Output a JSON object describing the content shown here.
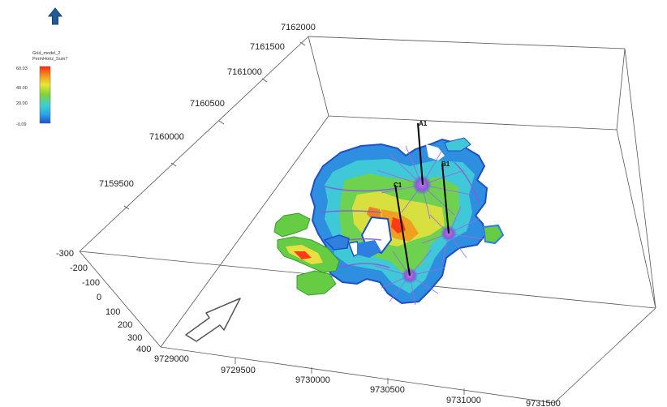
{
  "legend": {
    "title_line1": "Grid_model_2",
    "title_line2": "PermHoriz_Sum7",
    "ticks": [
      "60.03",
      "40.00",
      "20.00",
      "-0.09"
    ],
    "colors": [
      "#ff2a10",
      "#f5a020",
      "#e8e830",
      "#7dd23c",
      "#3dd0d0",
      "#2aa6e8",
      "#1e50c8"
    ]
  },
  "axes": {
    "y_labels": [
      "7162000",
      "7161500",
      "7161000",
      "7160500",
      "7160000",
      "7159500"
    ],
    "x_labels": [
      "9729000",
      "9729500",
      "9730000",
      "9730500",
      "9731000",
      "9731500"
    ],
    "z_labels": [
      "-300",
      "-200",
      "-100",
      "0",
      "100",
      "200",
      "300",
      "400"
    ]
  },
  "wells": [
    {
      "label": "A1"
    },
    {
      "label": "B1"
    },
    {
      "label": "C1"
    }
  ],
  "icons": {
    "north": "north-arrow-icon",
    "flow": "flow-direction-arrow-icon"
  }
}
